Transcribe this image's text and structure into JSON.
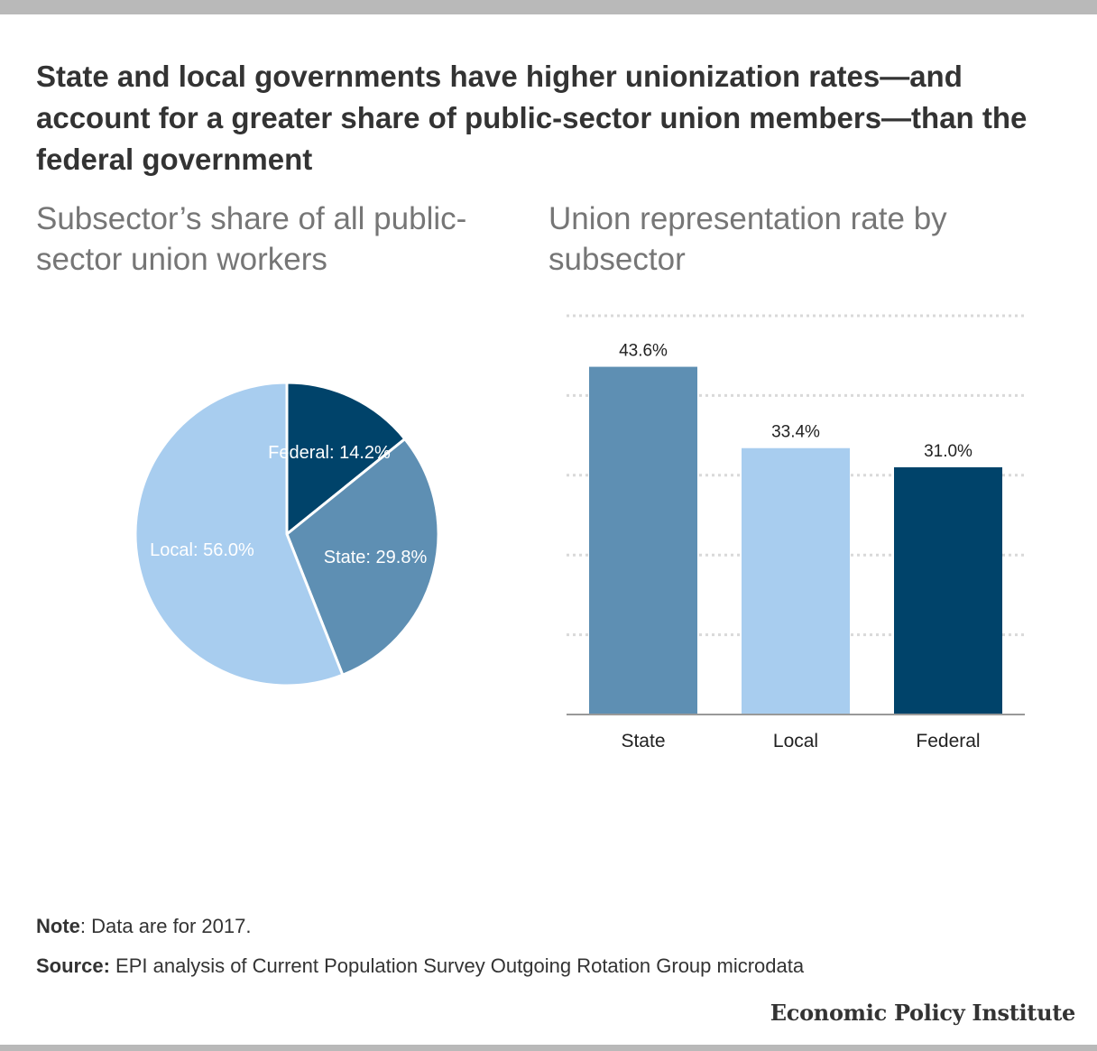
{
  "title": "State and local governments have higher unionization rates—and account for a greater share of public-sector union members—than the federal government",
  "chart_data": [
    {
      "type": "pie",
      "title": "Subsector’s share of all public-sector union workers",
      "slices": [
        {
          "name": "Federal",
          "value": 14.2,
          "label": "Federal: 14.2%",
          "color": "#00436a"
        },
        {
          "name": "State",
          "value": 29.8,
          "label": "State: 29.8%",
          "color": "#5e8fb3"
        },
        {
          "name": "Local",
          "value": 56.0,
          "label": "Local: 56.0%",
          "color": "#a8cdef"
        }
      ]
    },
    {
      "type": "bar",
      "title": "Union representation rate by subsector",
      "categories": [
        "State",
        "Local",
        "Federal"
      ],
      "values": [
        43.6,
        33.4,
        31.0
      ],
      "value_labels": [
        "43.6%",
        "33.4%",
        "31.0%"
      ],
      "colors": [
        "#5e8fb3",
        "#a8cdef",
        "#00436a"
      ],
      "ylim": [
        0,
        50
      ],
      "gridlines": [
        10,
        20,
        30,
        40,
        50
      ],
      "grid": true
    }
  ],
  "note": {
    "label": "Note",
    "text": ": Data are for 2017."
  },
  "source": {
    "label": "Source:",
    "text": " EPI analysis of Current Population Survey Outgoing Rotation Group microdata"
  },
  "brand": "Economic Policy Institute"
}
